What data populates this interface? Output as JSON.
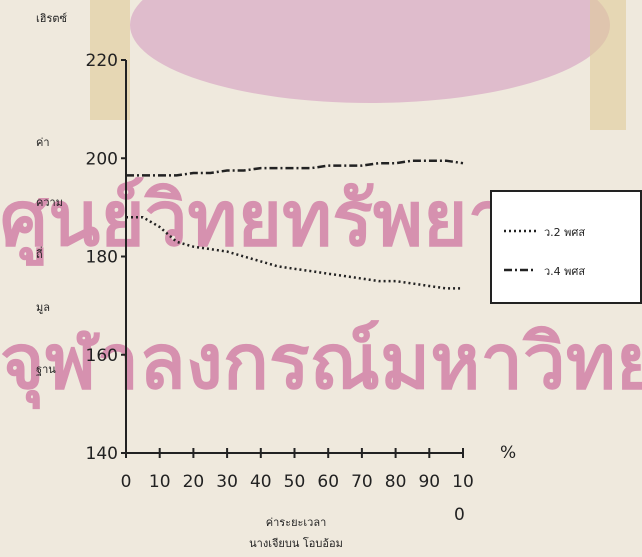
{
  "chart_data": {
    "type": "line",
    "title": "",
    "yunit_label": "เฮิรตซ์",
    "ylabel_lines": [
      "ค่า",
      "ความ",
      "ถี่",
      "มูล",
      "ฐาน"
    ],
    "xunit_label": "%",
    "xlabel_lines": [
      "ค่าระยะเวลา",
      "นางเจียบน โอบอ้อม"
    ],
    "ylim": [
      140,
      220
    ],
    "yticks": [
      140,
      160,
      180,
      200,
      220
    ],
    "xlim": [
      0,
      100
    ],
    "xtick_labels": [
      "0",
      "10",
      "20",
      "30",
      "40",
      "50",
      "60",
      "70",
      "80",
      "90",
      "10"
    ],
    "xtick_label_wrap": "0",
    "legend_position": "right",
    "grid": false,
    "x": [
      0,
      5,
      10,
      15,
      20,
      25,
      30,
      35,
      40,
      45,
      50,
      55,
      60,
      65,
      70,
      75,
      80,
      85,
      90,
      95,
      100
    ],
    "series": [
      {
        "name": "ว.2 พศส",
        "style": "dotted",
        "values": [
          188,
          188,
          186,
          183,
          182,
          181.5,
          181,
          180,
          179,
          178,
          177.5,
          177,
          176.5,
          176,
          175.5,
          175,
          175,
          174.5,
          174,
          173.5,
          173.5
        ]
      },
      {
        "name": "ว.4 พศส",
        "style": "dashed",
        "values": [
          196.5,
          196.5,
          196.5,
          196.5,
          197,
          197,
          197.5,
          197.5,
          198,
          198,
          198,
          198,
          198.5,
          198.5,
          198.5,
          199,
          199,
          199.5,
          199.5,
          199.5,
          199
        ]
      }
    ]
  },
  "watermark": {
    "line1": "ศูนย์วิทยทรัพยากร",
    "line2": "จุฬาลงกรณ์มหาวิทยาลัย",
    "color": "#c24a8a",
    "emblem_color": "#d9a8c4"
  }
}
